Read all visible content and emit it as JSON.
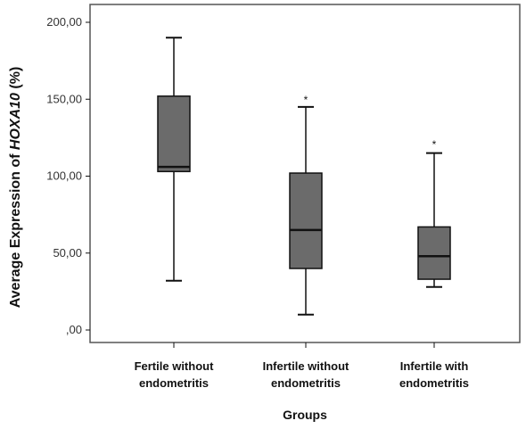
{
  "chart_data": {
    "type": "boxplot",
    "ylabel_prefix": "Average Expression of ",
    "ylabel_gene": "HOXA10",
    "ylabel_suffix": " (%)",
    "xlabel": "Groups",
    "ylim": [
      0,
      200
    ],
    "y_ticks": [
      0,
      50,
      100,
      150,
      200
    ],
    "y_tick_labels": [
      ",00",
      "50,00",
      "100,00",
      "150,00",
      "200,00"
    ],
    "categories": [
      [
        "Fertile without",
        "endometritis"
      ],
      [
        "Infertile without",
        "endometritis"
      ],
      [
        "Infertile with",
        "endometritis"
      ]
    ],
    "boxes": [
      {
        "min": 32,
        "q1": 103,
        "median": 106,
        "q3": 152,
        "max": 190,
        "outliers": []
      },
      {
        "min": 10,
        "q1": 40,
        "median": 65,
        "q3": 102,
        "max": 145,
        "outliers": [
          152
        ]
      },
      {
        "min": 28,
        "q1": 33,
        "median": 48,
        "q3": 67,
        "max": 115,
        "outliers": [
          123
        ]
      }
    ],
    "outlier_marker": "*",
    "grid": false,
    "box_color": "#6b6b6b",
    "line_color": "#111111",
    "frame_color": "#555555"
  }
}
